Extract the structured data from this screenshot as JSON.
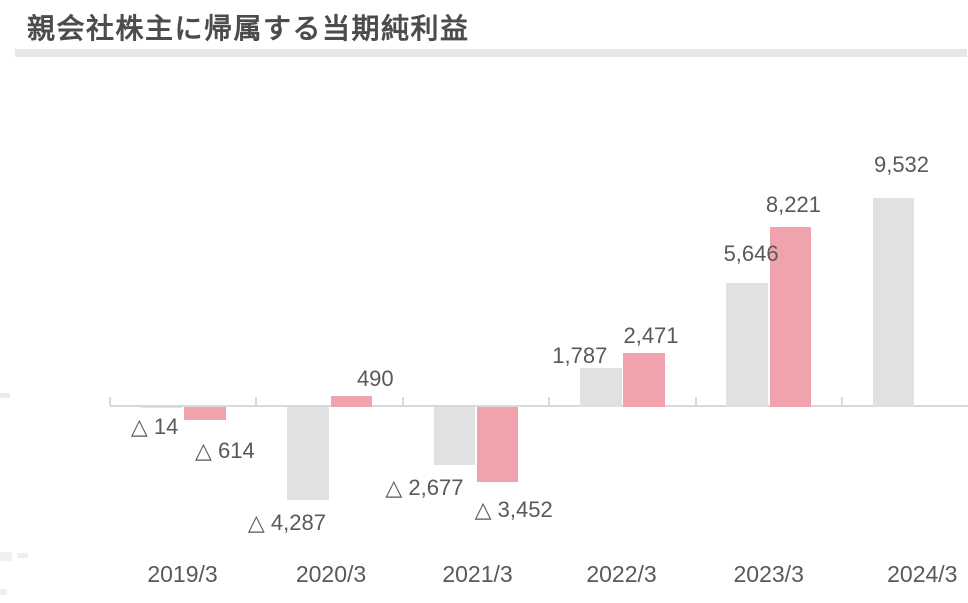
{
  "header": {
    "title": "親会社株主に帰属する当期純利益"
  },
  "chart_data": {
    "type": "bar",
    "title": "親会社株主に帰属する当期純利益",
    "categories": [
      "2019/3",
      "2020/3",
      "2021/3",
      "2022/3",
      "2023/3",
      "2024/3"
    ],
    "series": [
      {
        "name": "series-gray",
        "color": "#e1e1e1",
        "values": [
          -14,
          -4287,
          -2677,
          1787,
          5646,
          9532
        ],
        "labels": [
          "△ 14",
          "△ 4,287",
          "△ 2,677",
          "1,787",
          "5,646",
          "9,532"
        ]
      },
      {
        "name": "series-pink",
        "color": "#f1a3ad",
        "values": [
          -614,
          490,
          -3452,
          2471,
          8221,
          null
        ],
        "labels": [
          "△ 614",
          "490",
          "△ 3,452",
          "2,471",
          "8,221",
          null
        ]
      }
    ],
    "negative_notation": "△",
    "xlabel": "",
    "ylabel": "",
    "ylim": [
      -4700,
      10300
    ],
    "grid": false,
    "legend": null,
    "axis_color": "#d9d9d9",
    "label_color": "#595959",
    "title_color": "#4c4c4c",
    "rule_color": "#e7e7e7"
  }
}
